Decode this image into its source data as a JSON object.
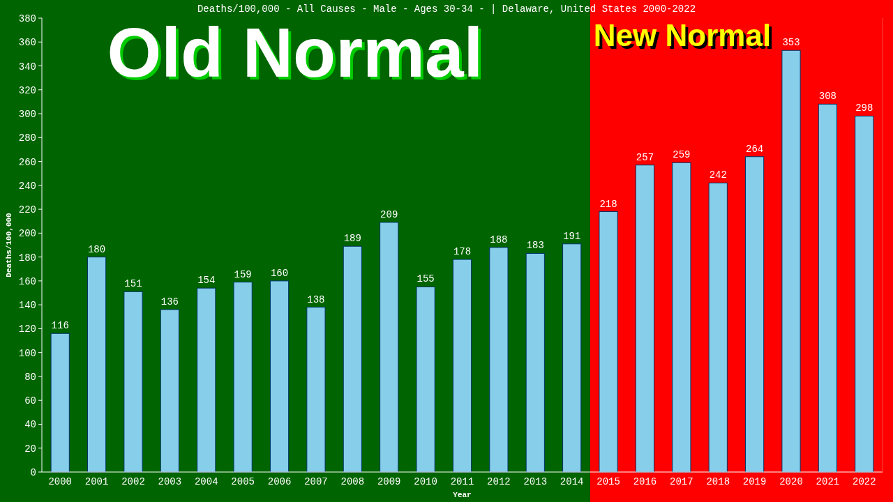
{
  "chart_data": {
    "type": "bar",
    "title": "Deaths/100,000 - All Causes - Male - Ages 30-34 -  | Delaware, United States 2000-2022",
    "xlabel": "Year",
    "ylabel": "Deaths/100,000",
    "categories": [
      "2000",
      "2001",
      "2002",
      "2003",
      "2004",
      "2005",
      "2006",
      "2007",
      "2008",
      "2009",
      "2010",
      "2011",
      "2012",
      "2013",
      "2014",
      "2015",
      "2016",
      "2017",
      "2018",
      "2019",
      "2020",
      "2021",
      "2022"
    ],
    "values": [
      116,
      180,
      151,
      136,
      154,
      159,
      160,
      138,
      189,
      209,
      155,
      178,
      188,
      183,
      191,
      218,
      257,
      259,
      242,
      264,
      353,
      308,
      298
    ],
    "color": "#87ceeb",
    "data_labels": true,
    "grid": false,
    "ylim": [
      0,
      380
    ],
    "yticks": [
      0,
      20,
      40,
      60,
      80,
      100,
      120,
      140,
      160,
      180,
      200,
      220,
      240,
      260,
      280,
      300,
      320,
      340,
      360,
      380
    ],
    "bands": [
      {
        "axis": "x",
        "from": "2000",
        "to": "2014",
        "label": "Old Normal",
        "color": "#006400"
      },
      {
        "axis": "x",
        "from": "2015",
        "to": "2022",
        "label": "New Normal",
        "color": "#ff0000"
      }
    ]
  }
}
